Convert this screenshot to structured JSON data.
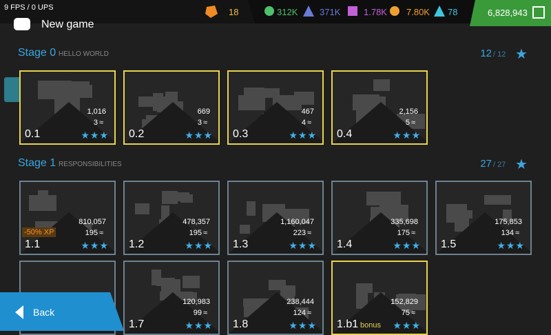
{
  "hud": {
    "fps": "9 FPS / 0 UPS",
    "title": "New game"
  },
  "top_bar": {
    "tokens": "18",
    "resources": [
      "312K",
      "371K",
      "1.78K",
      "7.80K",
      "78"
    ],
    "money": "6,828,943"
  },
  "stages": [
    {
      "name": "Stage 0",
      "subtitle": "HELLO WORLD",
      "stars": "12",
      "total": "/ 12",
      "levels": [
        {
          "label": "0.1",
          "score": "1,016",
          "waves": "3",
          "border": "#e8d44d"
        },
        {
          "label": "0.2",
          "score": "669",
          "waves": "3",
          "border": "#e8d44d"
        },
        {
          "label": "0.3",
          "score": "467",
          "waves": "4",
          "border": "#e8d44d"
        },
        {
          "label": "0.4",
          "score": "2,156",
          "waves": "5",
          "border": "#e8d44d"
        }
      ]
    },
    {
      "name": "Stage 1",
      "subtitle": "RESPONSIBILITIES",
      "stars": "27",
      "total": "/ 27",
      "levels": [
        {
          "label": "1.1",
          "score": "810,057",
          "waves": "195",
          "badge": "-50% XP",
          "border": "#6d8391"
        },
        {
          "label": "1.2",
          "score": "478,357",
          "waves": "195",
          "border": "#6d8391"
        },
        {
          "label": "1.3",
          "score": "1,160,047",
          "waves": "223",
          "border": "#6d8391"
        },
        {
          "label": "1.4",
          "score": "335,698",
          "waves": "175",
          "border": "#6d8391"
        },
        {
          "label": "1.5",
          "score": "175,853",
          "waves": "134",
          "border": "#6d8391"
        },
        {
          "label": "1.7",
          "score": "120,983",
          "waves": "99",
          "border": "#6d8391"
        },
        {
          "label": "1.8",
          "score": "238,444",
          "waves": "124",
          "border": "#6d8391"
        },
        {
          "label": "1.b1",
          "score": "152,829",
          "waves": "75",
          "tag": "bonus",
          "border": "#e8d44d"
        }
      ]
    }
  ],
  "back": "Back"
}
